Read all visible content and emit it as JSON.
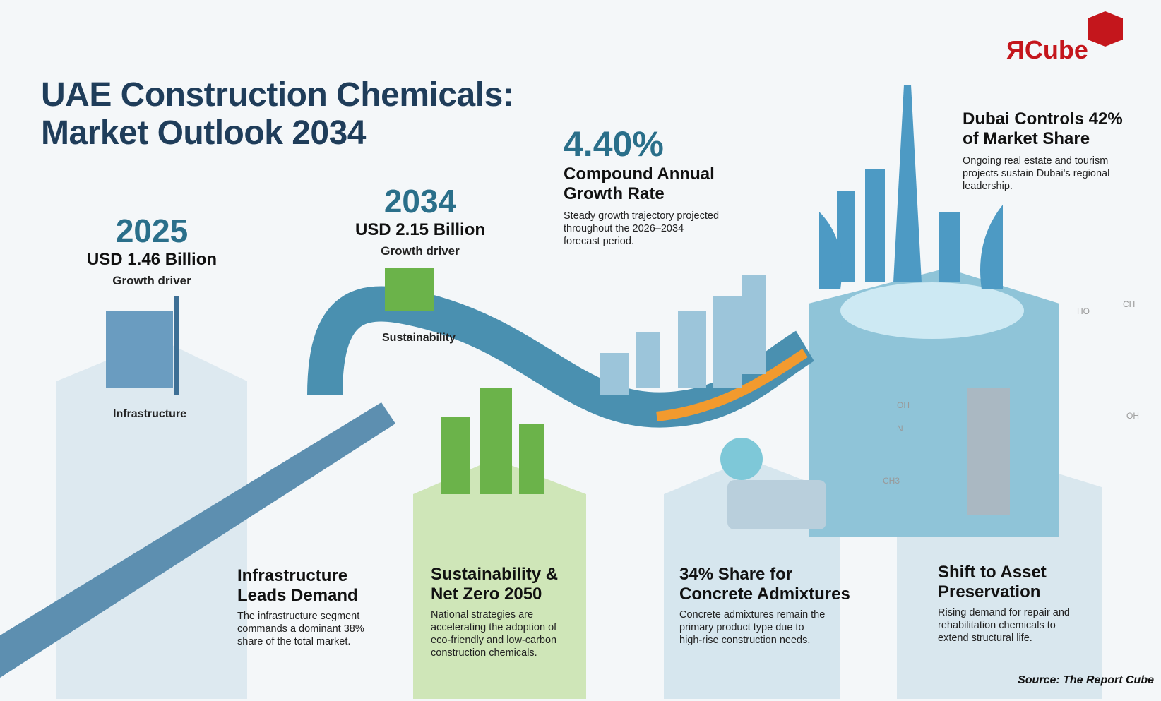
{
  "logo": {
    "text": "ЯCube",
    "mark": "Я",
    "word": "Cube",
    "color": "#c4161c"
  },
  "title": {
    "line1": "UAE Construction Chemicals:",
    "line2": "Market Outlook 2034"
  },
  "milestones": [
    {
      "year": "2025",
      "value": "USD 1.46 Billion",
      "label": "Growth driver",
      "driver": "Infrastructure"
    },
    {
      "year": "2034",
      "value": "USD 2.15 Billion",
      "label": "Growth driver",
      "driver": "Sustainability"
    }
  ],
  "cagr": {
    "value": "4.40%",
    "title_line1": "Compound Annual",
    "title_line2": "Growth Rate",
    "desc_line1": "Steady growth trajectory projected",
    "desc_line2": "throughout the 2026–2034",
    "desc_line3": "forecast period."
  },
  "dubai": {
    "title_line1": "Dubai Controls 42%",
    "title_line2": "of Market Share",
    "desc_line1": "Ongoing real estate and tourism",
    "desc_line2": "projects sustain Dubai's regional",
    "desc_line3": "leadership."
  },
  "cards": [
    {
      "title1": "Infrastructure",
      "title2": "Leads Demand",
      "desc": [
        "The infrastructure segment",
        "commands a dominant 38%",
        "share of the total market."
      ]
    },
    {
      "title1": "Sustainability &",
      "title2": "Net Zero 2050",
      "desc": [
        "National strategies are",
        "accelerating the adoption of",
        "eco-friendly and low-carbon",
        "construction chemicals."
      ]
    },
    {
      "title1": "34% Share for",
      "title2": "Concrete Admixtures",
      "desc": [
        "Concrete admixtures remain the",
        "primary product type due to",
        "high-rise construction needs."
      ]
    },
    {
      "title1": "Shift to Asset",
      "title2": "Preservation",
      "desc": [
        "Rising demand for repair and",
        "rehabilitation chemicals to",
        "extend structural life."
      ]
    }
  ],
  "chem_labels": {
    "ho": "HO",
    "ch": "CH",
    "oh": "OH",
    "oh2": "OH",
    "n": "N",
    "ch3": "CH3"
  },
  "source": "Source: The Report Cube",
  "colors": {
    "title": "#1f3d5a",
    "accent": "#2a6f8a",
    "road": "#4a90b0",
    "arrow": "#f29a2e",
    "green": "#7cc24a"
  }
}
